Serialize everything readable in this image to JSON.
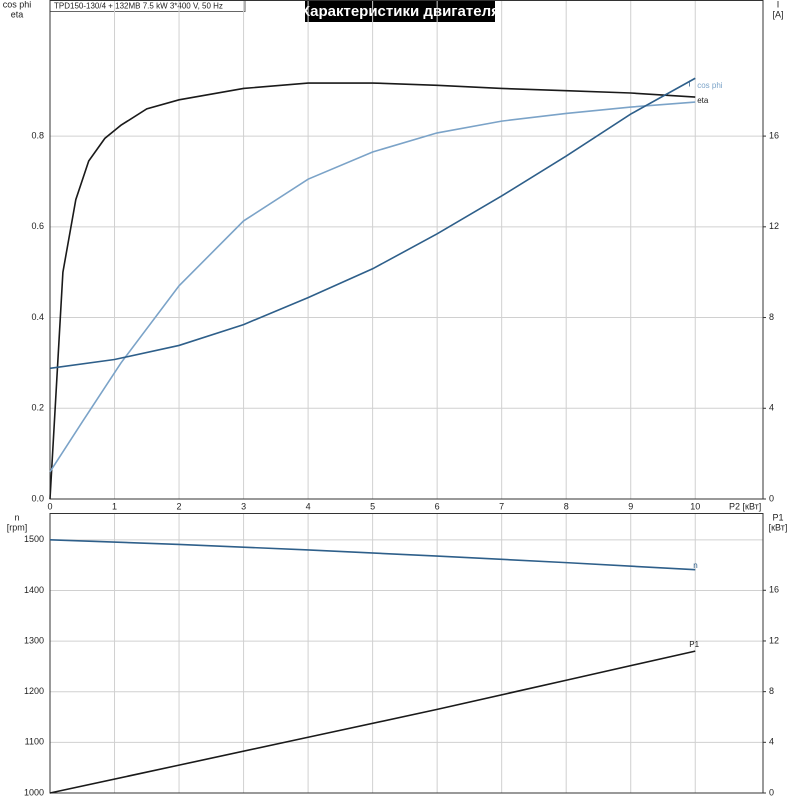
{
  "header": "TPD150-130/4 + 132MB  7.5 kW  3*400 V, 50 Hz",
  "title": "Характеристики двигателя",
  "chart_data": [
    {
      "type": "line",
      "xlabel": "P2 [кВт]",
      "ylabel": [
        "cos phi",
        "eta"
      ],
      "y2label": [
        "I",
        "[A]"
      ],
      "xlim": [
        0,
        11.05
      ],
      "xticks": [
        0,
        1,
        2,
        3,
        4,
        5,
        6,
        7,
        8,
        9,
        10
      ],
      "ylim": [
        0,
        1.1
      ],
      "yticks": [
        {
          "value": 0,
          "label": "0.0"
        },
        0.2,
        0.4,
        0.6,
        0.8
      ],
      "y2lim": [
        0,
        22
      ],
      "y2ticks": [
        0,
        4,
        8,
        12,
        16
      ],
      "grid": true,
      "series": [
        {
          "name": "eta",
          "color": "#1a1a1a",
          "x": [
            0,
            0.2,
            0.4,
            0.6,
            0.85,
            1.1,
            1.5,
            2,
            3,
            4,
            5,
            6,
            7,
            8,
            9,
            10
          ],
          "values": [
            0,
            0.5,
            0.66,
            0.745,
            0.795,
            0.824,
            0.86,
            0.88,
            0.905,
            0.917,
            0.917,
            0.912,
            0.905,
            0.9,
            0.895,
            0.886
          ]
        },
        {
          "name": "cos phi",
          "color": "#7ba3c8",
          "x": [
            0,
            0.5,
            1.1,
            2,
            3,
            4,
            5,
            6,
            7,
            8,
            9,
            10
          ],
          "values": [
            0.06,
            0.17,
            0.3,
            0.47,
            0.613,
            0.705,
            0.765,
            0.807,
            0.833,
            0.85,
            0.864,
            0.875
          ]
        },
        {
          "name": "I",
          "color": "#2e5f8a",
          "axis": "y2",
          "x": [
            0,
            1,
            2,
            3,
            4,
            5,
            6,
            7,
            8,
            9,
            10
          ],
          "values": [
            5.76,
            6.15,
            6.77,
            7.69,
            8.88,
            10.15,
            11.69,
            13.36,
            15.12,
            16.97,
            18.55
          ]
        }
      ]
    },
    {
      "type": "line",
      "ylabel": [
        "n",
        "[rpm]"
      ],
      "y2label": [
        "P1",
        "[кВт]"
      ],
      "xlim": [
        0,
        11.05
      ],
      "xticks": [
        0,
        1,
        2,
        3,
        4,
        5,
        6,
        7,
        8,
        9,
        10
      ],
      "xtick_labels": false,
      "ylim": [
        1000,
        1553
      ],
      "yticks": [
        1000,
        1100,
        1200,
        1300,
        1400,
        1500
      ],
      "y2lim": [
        0,
        22.1
      ],
      "y2ticks": [
        0,
        4,
        8,
        12,
        16
      ],
      "grid": true,
      "series": [
        {
          "name": "n",
          "color": "#2e5f8a",
          "x": [
            0,
            2,
            4,
            6,
            8,
            10
          ],
          "values": [
            1500,
            1491,
            1480,
            1468,
            1455,
            1441
          ]
        },
        {
          "name": "P1",
          "color": "#1a1a1a",
          "axis": "y2",
          "x": [
            0,
            2,
            4,
            6,
            8,
            10
          ],
          "values": [
            0,
            2.2,
            4.4,
            6.6,
            8.9,
            11.2
          ]
        }
      ]
    }
  ]
}
